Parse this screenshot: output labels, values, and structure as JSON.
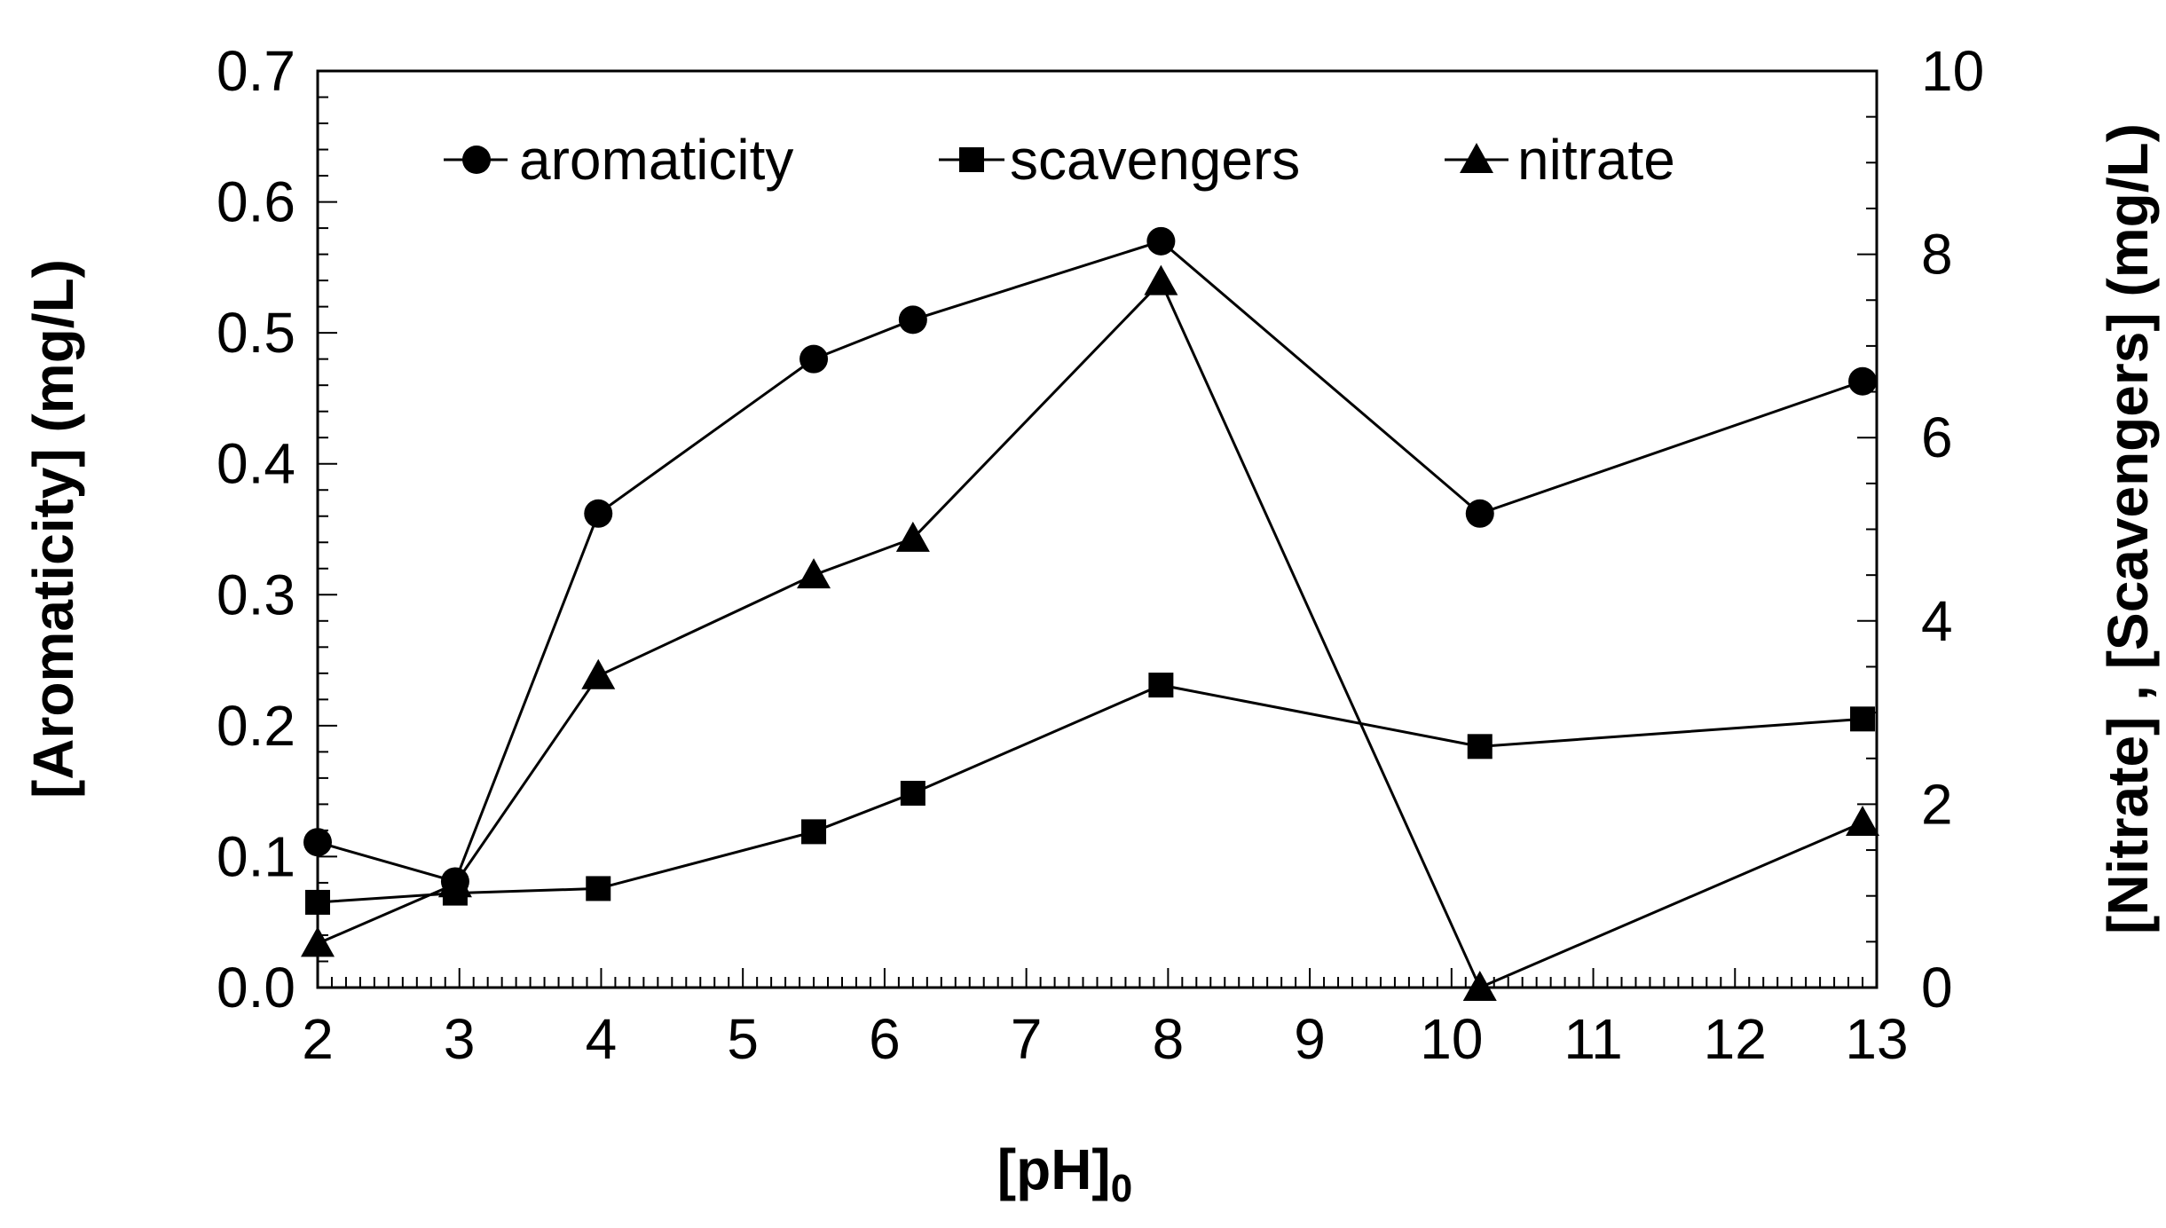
{
  "chart_data": {
    "type": "line",
    "xlabel": "[pH]",
    "xlabel_subscript": "0",
    "ylabel_left": "[Aromaticity] (mg/L)",
    "ylabel_right": "[Nitrate] , [Scavengers] (mg/L)",
    "x_ticks": [
      2,
      3,
      4,
      5,
      6,
      7,
      8,
      9,
      10,
      11,
      12,
      13
    ],
    "x_tick_labels": [
      "2",
      "3",
      "4",
      "5",
      "6",
      "7",
      "8",
      "9",
      "10",
      "11",
      "12",
      "13"
    ],
    "xlim": [
      2,
      13
    ],
    "ylim_left": [
      0,
      0.7
    ],
    "y_left_ticks": [
      0,
      0.1,
      0.2,
      0.3,
      0.4,
      0.5,
      0.6,
      0.7
    ],
    "y_left_tick_labels": [
      "0.0",
      "0.1",
      "0.2",
      "0.3",
      "0.4",
      "0.5",
      "0.6",
      "0.7"
    ],
    "ylim_right": [
      0,
      10
    ],
    "y_right_ticks": [
      0,
      2,
      4,
      6,
      8,
      10
    ],
    "y_right_tick_labels": [
      "0",
      "2",
      "4",
      "6",
      "8",
      "10"
    ],
    "legend_position": "top",
    "series": [
      {
        "name": "aromaticity",
        "marker": "circle",
        "axis": "left",
        "x": [
          2.0,
          2.97,
          3.98,
          5.5,
          6.2,
          7.95,
          10.2,
          12.9
        ],
        "values": [
          0.111,
          0.081,
          0.362,
          0.48,
          0.51,
          0.57,
          0.362,
          0.463
        ]
      },
      {
        "name": "scavengers",
        "marker": "square",
        "axis": "right",
        "x": [
          2.0,
          2.97,
          3.98,
          5.5,
          6.2,
          7.95,
          10.2,
          12.9
        ],
        "values": [
          0.93,
          1.03,
          1.08,
          1.7,
          2.12,
          3.3,
          2.63,
          2.93
        ]
      },
      {
        "name": "nitrate",
        "marker": "triangle",
        "axis": "right",
        "x": [
          2.0,
          2.97,
          3.98,
          5.5,
          6.2,
          7.95,
          10.2,
          12.9
        ],
        "values": [
          0.48,
          1.13,
          3.4,
          4.5,
          4.9,
          7.7,
          0.0,
          1.8
        ]
      }
    ]
  }
}
